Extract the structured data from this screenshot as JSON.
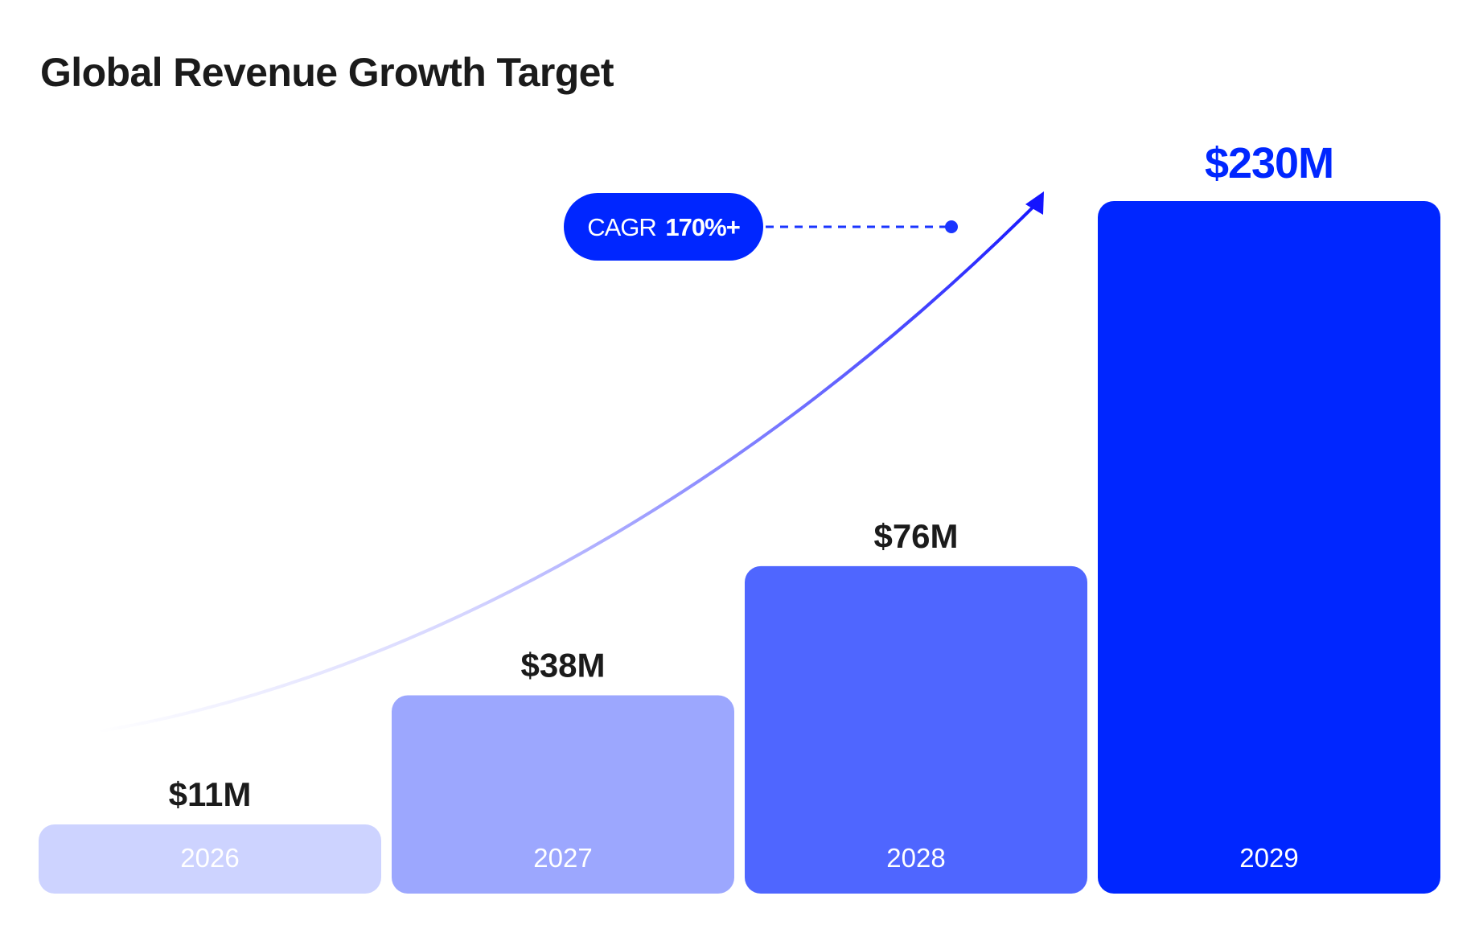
{
  "title": "Global Revenue Growth Target",
  "annotation": {
    "label": "CAGR",
    "value": "170%+",
    "color": "#0026FF"
  },
  "colors": {
    "text": "#1b1b1b",
    "highlight": "#0026FF",
    "arrow": "#1414FF"
  },
  "chart_data": {
    "type": "bar",
    "title": "Global Revenue Growth Target",
    "xlabel": "",
    "ylabel": "",
    "unit": "$M",
    "categories": [
      "2026",
      "2027",
      "2028",
      "2029"
    ],
    "values": [
      11,
      38,
      76,
      230
    ],
    "value_labels": [
      "$11M",
      "$38M",
      "$76M",
      "$230M"
    ],
    "bar_colors": [
      "#CDD3FF",
      "#9CA7FE",
      "#4F66FF",
      "#0026FF"
    ],
    "highlight_index": 3,
    "annotations": [
      "CAGR 170%+"
    ],
    "trend_arrow": true,
    "grid": false,
    "legend": "none",
    "axes_visible": false
  }
}
